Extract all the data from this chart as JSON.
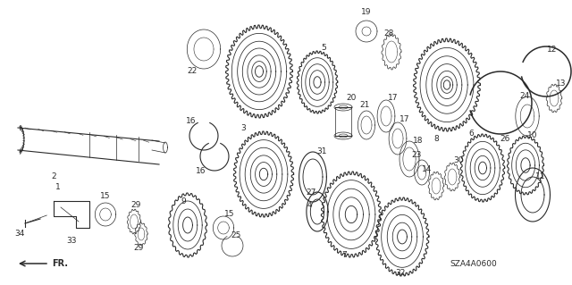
{
  "diagram_code": "SZA4A0600",
  "bg_color": "#ffffff",
  "line_color": "#2a2a2a",
  "lw_thin": 0.5,
  "lw_med": 0.8,
  "lw_thick": 1.1
}
